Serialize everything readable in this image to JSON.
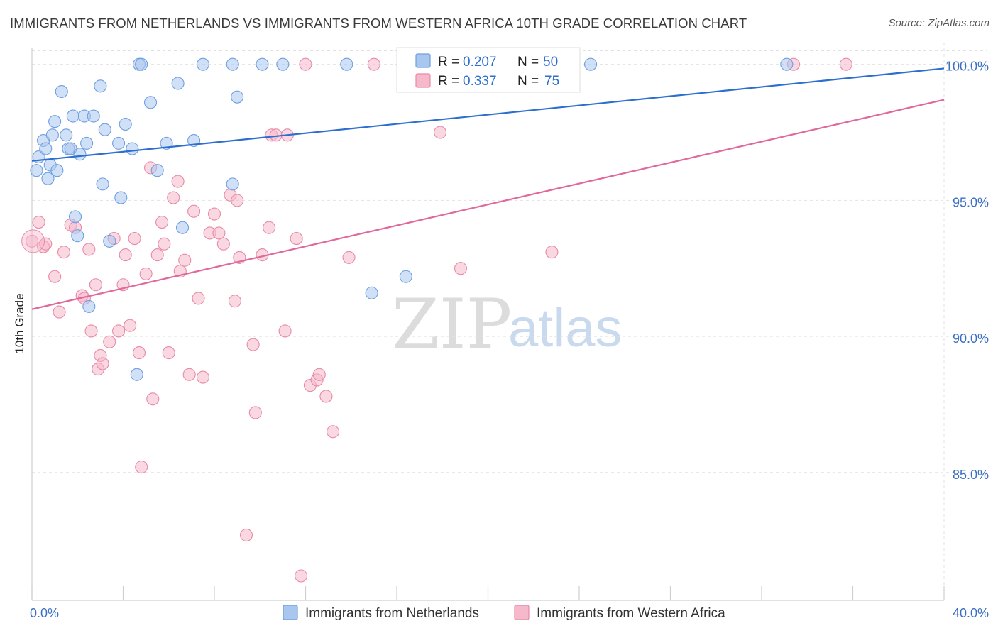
{
  "title": "IMMIGRANTS FROM NETHERLANDS VS IMMIGRANTS FROM WESTERN AFRICA 10TH GRADE CORRELATION CHART",
  "source": "Source: ZipAtlas.com",
  "watermark": {
    "part1": "ZIP",
    "part2": "atlas"
  },
  "legend_top": [
    {
      "r_label": "R =",
      "r_value": "0.207",
      "n_label": "N =",
      "n_value": "50"
    },
    {
      "r_label": "R =",
      "r_value": "0.337",
      "n_label": "N =",
      "n_value": "75"
    }
  ],
  "legend_bottom": [
    {
      "label": "Immigrants from Netherlands"
    },
    {
      "label": "Immigrants from Western Africa"
    }
  ],
  "colors": {
    "netherlands_fill": "#a9c6ee",
    "netherlands_stroke": "#6f9fe0",
    "netherlands_line": "#2d6fd0",
    "wafrica_fill": "#f6b8cb",
    "wafrica_stroke": "#e88aa8",
    "wafrica_line": "#e0689a",
    "grid": "#e2e2e2",
    "tick_text": "#3a6fc4"
  },
  "chart_data": {
    "type": "scatter",
    "title": "IMMIGRANTS FROM NETHERLANDS VS IMMIGRANTS FROM WESTERN AFRICA 10TH GRADE CORRELATION CHART",
    "xlabel": "",
    "ylabel": "10th Grade",
    "xlim": [
      0,
      40
    ],
    "ylim": [
      80.3,
      100.8
    ],
    "x_tick_labels": [
      {
        "x": 0,
        "label": "0.0%"
      },
      {
        "x": 40,
        "label": "40.0%"
      }
    ],
    "y_tick_labels": [
      {
        "y": 100,
        "label": "100.0%"
      },
      {
        "y": 95,
        "label": "95.0%"
      },
      {
        "y": 90,
        "label": "90.0%"
      },
      {
        "y": 85,
        "label": "85.0%"
      }
    ],
    "grid": true,
    "legend_position": "top-center",
    "series": [
      {
        "name": "Immigrants from Netherlands",
        "r": 0.207,
        "n": 50,
        "trend": [
          [
            0,
            96.45
          ],
          [
            40,
            99.85
          ]
        ],
        "points": [
          [
            0.2,
            96.1
          ],
          [
            0.3,
            96.6
          ],
          [
            0.5,
            97.2
          ],
          [
            0.6,
            96.9
          ],
          [
            0.7,
            95.8
          ],
          [
            0.8,
            96.3
          ],
          [
            0.9,
            97.4
          ],
          [
            1.0,
            97.9
          ],
          [
            1.1,
            96.1
          ],
          [
            1.3,
            99.0
          ],
          [
            1.5,
            97.4
          ],
          [
            1.6,
            96.9
          ],
          [
            1.7,
            96.9
          ],
          [
            1.8,
            98.1
          ],
          [
            2.1,
            96.7
          ],
          [
            2.3,
            98.1
          ],
          [
            2.4,
            97.1
          ],
          [
            2.7,
            98.1
          ],
          [
            3.0,
            99.2
          ],
          [
            3.1,
            95.6
          ],
          [
            3.2,
            97.6
          ],
          [
            3.8,
            97.1
          ],
          [
            3.9,
            95.1
          ],
          [
            4.1,
            97.8
          ],
          [
            4.4,
            96.9
          ],
          [
            4.7,
            100.0
          ],
          [
            4.8,
            100.0
          ],
          [
            5.2,
            98.6
          ],
          [
            5.5,
            96.1
          ],
          [
            5.9,
            97.1
          ],
          [
            6.4,
            99.3
          ],
          [
            7.1,
            97.2
          ],
          [
            7.5,
            100.0
          ],
          [
            8.8,
            100.0
          ],
          [
            9.0,
            98.8
          ],
          [
            10.1,
            100.0
          ],
          [
            11.0,
            100.0
          ],
          [
            13.8,
            100.0
          ],
          [
            16.7,
            100.0
          ],
          [
            24.5,
            100.0
          ],
          [
            33.1,
            100.0
          ],
          [
            1.9,
            94.4
          ],
          [
            2.0,
            93.7
          ],
          [
            3.4,
            93.5
          ],
          [
            2.5,
            91.1
          ],
          [
            4.6,
            88.6
          ],
          [
            6.6,
            94.0
          ],
          [
            8.8,
            95.6
          ],
          [
            14.9,
            91.6
          ],
          [
            16.4,
            92.2
          ]
        ]
      },
      {
        "name": "Immigrants from Western Africa",
        "r": 0.337,
        "n": 75,
        "trend": [
          [
            0,
            91.0
          ],
          [
            40,
            98.7
          ]
        ],
        "points": [
          [
            0.0,
            93.5
          ],
          [
            0.3,
            94.2
          ],
          [
            0.5,
            93.3
          ],
          [
            0.6,
            93.4
          ],
          [
            1.0,
            92.2
          ],
          [
            1.2,
            90.9
          ],
          [
            1.4,
            93.1
          ],
          [
            1.7,
            94.1
          ],
          [
            1.9,
            94.0
          ],
          [
            2.2,
            91.5
          ],
          [
            2.3,
            91.4
          ],
          [
            2.5,
            93.2
          ],
          [
            2.6,
            90.2
          ],
          [
            2.8,
            91.9
          ],
          [
            2.9,
            88.8
          ],
          [
            3.0,
            89.3
          ],
          [
            3.1,
            89.0
          ],
          [
            3.4,
            89.8
          ],
          [
            3.6,
            93.6
          ],
          [
            3.8,
            90.2
          ],
          [
            4.0,
            91.9
          ],
          [
            4.1,
            93.0
          ],
          [
            4.3,
            90.4
          ],
          [
            4.5,
            93.6
          ],
          [
            4.7,
            89.4
          ],
          [
            4.8,
            85.2
          ],
          [
            5.0,
            92.3
          ],
          [
            5.2,
            96.2
          ],
          [
            5.3,
            87.7
          ],
          [
            5.5,
            93.0
          ],
          [
            5.7,
            94.2
          ],
          [
            5.8,
            93.4
          ],
          [
            6.0,
            89.4
          ],
          [
            6.2,
            95.1
          ],
          [
            6.4,
            95.7
          ],
          [
            6.5,
            92.4
          ],
          [
            6.7,
            92.8
          ],
          [
            6.9,
            88.6
          ],
          [
            7.1,
            94.6
          ],
          [
            7.3,
            91.4
          ],
          [
            7.5,
            88.5
          ],
          [
            7.8,
            93.8
          ],
          [
            8.0,
            94.5
          ],
          [
            8.2,
            93.8
          ],
          [
            8.4,
            93.4
          ],
          [
            8.7,
            95.2
          ],
          [
            8.9,
            91.3
          ],
          [
            9.0,
            95.0
          ],
          [
            9.1,
            92.9
          ],
          [
            9.4,
            82.7
          ],
          [
            9.7,
            89.7
          ],
          [
            9.8,
            87.2
          ],
          [
            10.1,
            93.0
          ],
          [
            10.4,
            94.0
          ],
          [
            10.5,
            97.4
          ],
          [
            10.7,
            97.4
          ],
          [
            11.1,
            90.2
          ],
          [
            11.2,
            97.4
          ],
          [
            11.6,
            93.6
          ],
          [
            11.8,
            81.2
          ],
          [
            12.0,
            100.0
          ],
          [
            12.2,
            88.2
          ],
          [
            12.5,
            88.4
          ],
          [
            12.6,
            88.6
          ],
          [
            12.9,
            87.8
          ],
          [
            13.2,
            86.5
          ],
          [
            13.9,
            92.9
          ],
          [
            16.6,
            100.0
          ],
          [
            16.8,
            100.0
          ],
          [
            17.9,
            97.5
          ],
          [
            18.8,
            92.5
          ],
          [
            22.8,
            93.1
          ],
          [
            33.4,
            100.0
          ],
          [
            35.7,
            100.0
          ],
          [
            15.0,
            100.0
          ]
        ]
      }
    ]
  }
}
